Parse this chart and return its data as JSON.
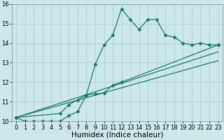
{
  "xlabel": "Humidex (Indice chaleur)",
  "xlim": [
    -0.5,
    23.5
  ],
  "ylim": [
    10,
    16
  ],
  "xticks": [
    0,
    1,
    2,
    3,
    4,
    5,
    6,
    7,
    8,
    9,
    10,
    11,
    12,
    13,
    14,
    15,
    16,
    17,
    18,
    19,
    20,
    21,
    22,
    23
  ],
  "yticks": [
    10,
    11,
    12,
    13,
    14,
    15,
    16
  ],
  "bg_color": "#cce8e8",
  "grid_color": "#aacccc",
  "line_color": "#1a7a6e",
  "line1_x": [
    0,
    1,
    2,
    3,
    4,
    5,
    6,
    7,
    8,
    9,
    10,
    11,
    12,
    13,
    14,
    15,
    16,
    17,
    18,
    19,
    20,
    21,
    22,
    23
  ],
  "line1_y": [
    10.2,
    10.0,
    10.0,
    10.0,
    10.0,
    10.0,
    10.3,
    10.5,
    11.35,
    12.9,
    13.9,
    14.4,
    15.75,
    15.2,
    14.7,
    15.2,
    15.2,
    14.4,
    14.3,
    14.0,
    13.9,
    14.0,
    13.9,
    13.9
  ],
  "line2_x": [
    0,
    5,
    6,
    7,
    8,
    9,
    10,
    11,
    12,
    23
  ],
  "line2_y": [
    10.2,
    10.4,
    10.85,
    11.1,
    11.35,
    11.4,
    11.45,
    11.85,
    12.0,
    13.9
  ],
  "line3_x": [
    0,
    23
  ],
  "line3_y": [
    10.2,
    13.55
  ],
  "line4_x": [
    0,
    23
  ],
  "line4_y": [
    10.2,
    13.1
  ],
  "marker": "D",
  "markersize": 2.5,
  "linewidth": 0.9,
  "tick_fontsize": 6,
  "xlabel_fontsize": 7.5
}
